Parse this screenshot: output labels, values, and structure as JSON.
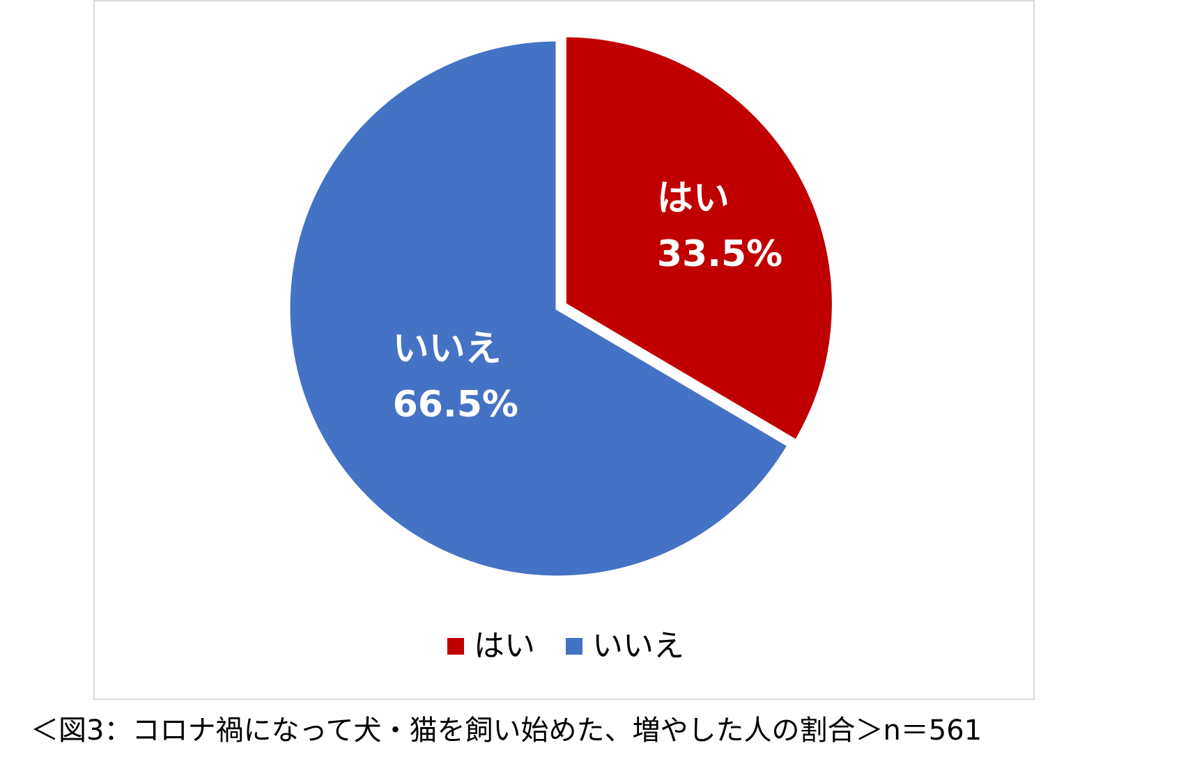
{
  "chart_data": {
    "type": "pie",
    "categories": [
      "はい",
      "いいえ"
    ],
    "values": [
      33.5,
      66.5
    ],
    "value_labels": [
      "33.5%",
      "66.5%"
    ],
    "colors": [
      "#c00000",
      "#4472c4"
    ],
    "legend": "bottom",
    "caption": "＜図3：コロナ禍になって犬・猫を飼い始めた、増やした人の割合＞n＝561"
  }
}
